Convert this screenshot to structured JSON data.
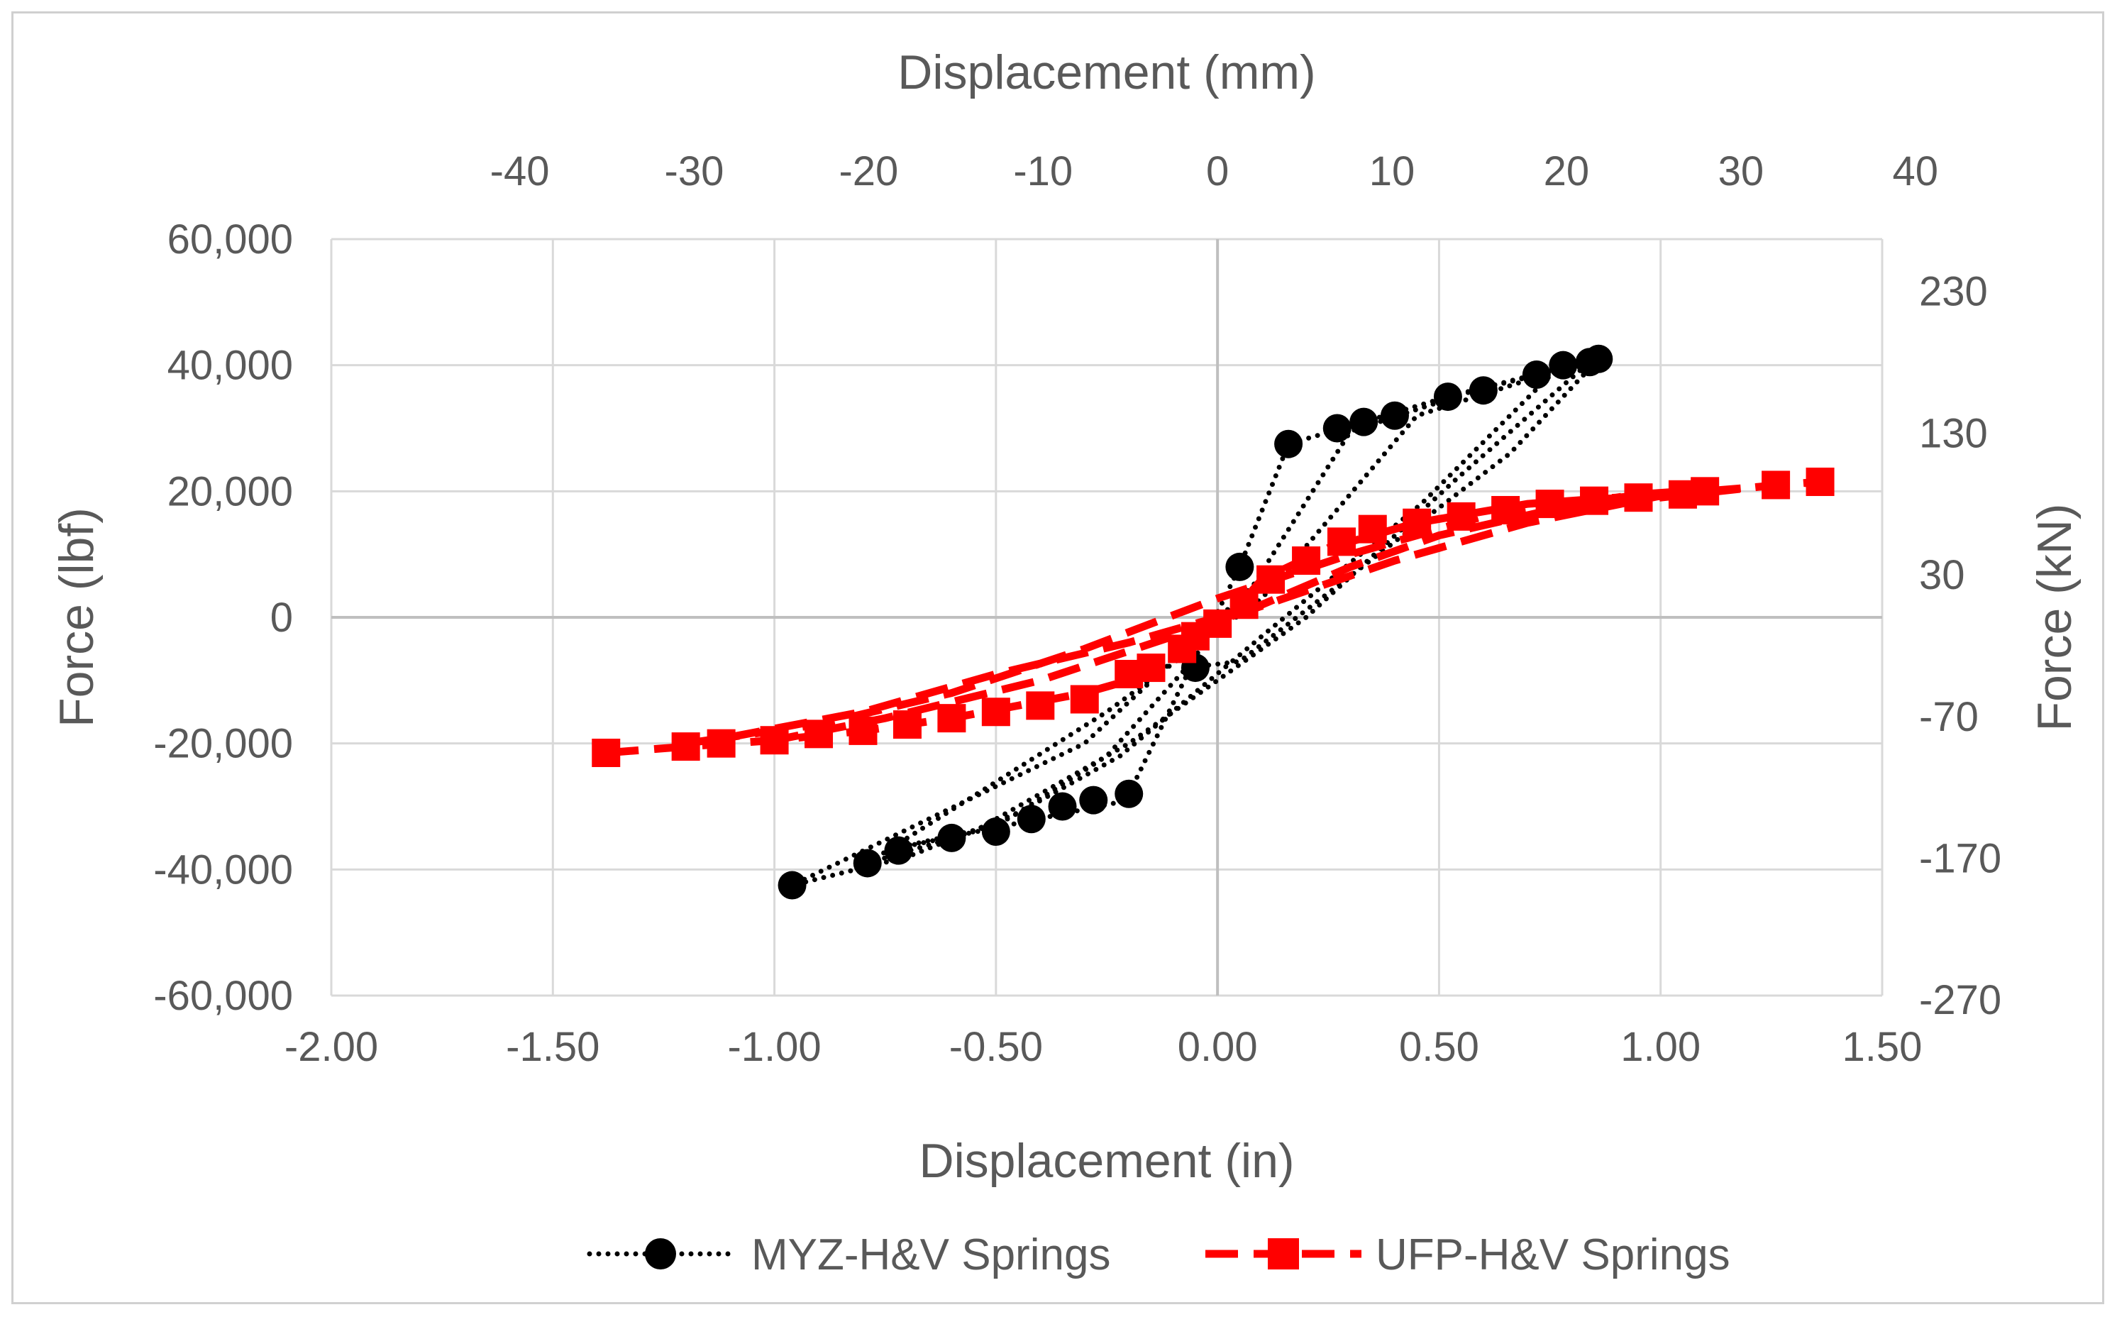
{
  "chart_data": {
    "type": "scatter",
    "x_bottom": {
      "label": "Displacement (in)",
      "range": [
        -2.0,
        1.5
      ],
      "ticks": [
        "-2.00",
        "-1.50",
        "-1.00",
        "-0.50",
        "0.00",
        "0.50",
        "1.00",
        "1.50"
      ]
    },
    "x_top": {
      "label": "Displacement (mm)",
      "range": [
        -40,
        40
      ],
      "ticks": [
        "-40",
        "-30",
        "-20",
        "-10",
        "0",
        "10",
        "20",
        "30",
        "40"
      ]
    },
    "y_left": {
      "label": "Force (lbf)",
      "range": [
        -60000,
        60000
      ],
      "ticks": [
        "60,000",
        "40,000",
        "20,000",
        "0",
        "-20,000",
        "-40,000",
        "-60,000"
      ]
    },
    "y_right": {
      "label": "Force (kN)",
      "range": [
        -270,
        230
      ],
      "ticks": [
        "230",
        "130",
        "30",
        "-70",
        "-170",
        "-270"
      ]
    },
    "grid": true,
    "legend_position": "bottom",
    "series": [
      {
        "name": "MYZ-H&V Springs",
        "color": "#000000",
        "marker": "circle",
        "line_style": "dotted",
        "x": [
          -0.2,
          0.05,
          0.16,
          0.33,
          0.52,
          0.8,
          0.86,
          0.66,
          0.4,
          0.05,
          -0.07,
          -0.25,
          -0.45,
          -0.7,
          -0.96,
          -0.3,
          0.08,
          0.3,
          0.58,
          0.84,
          0.54,
          0.2,
          -0.2,
          -0.55,
          -0.79,
          -0.25,
          0.1,
          0.45,
          0.76,
          0.46,
          0.1,
          -0.22,
          -0.5,
          -0.75,
          -0.2
        ],
        "y": [
          -28000,
          8000,
          27500,
          31000,
          35000,
          40000,
          41000,
          26000,
          12000,
          -7000,
          -8000,
          -22000,
          -31000,
          -38000,
          -42500,
          -20000,
          5000,
          29500,
          36000,
          40500,
          22000,
          0,
          -20000,
          -34000,
          -39000,
          -15000,
          3000,
          32000,
          39000,
          18000,
          -3000,
          -22000,
          -33000,
          -37000,
          -29000
        ],
        "marker_points_x": [
          -0.96,
          -0.79,
          -0.72,
          -0.6,
          -0.5,
          -0.42,
          -0.35,
          -0.28,
          -0.2,
          -0.05,
          0.05,
          0.16,
          0.27,
          0.33,
          0.4,
          0.52,
          0.6,
          0.72,
          0.78,
          0.84,
          0.86
        ],
        "marker_points_y": [
          -42500,
          -39000,
          -37000,
          -35000,
          -34000,
          -32000,
          -30000,
          -29000,
          -28000,
          -8000,
          8000,
          27500,
          30000,
          31000,
          32000,
          35000,
          36000,
          38500,
          40000,
          40500,
          41000
        ]
      },
      {
        "name": "UFP-H&V Springs",
        "color": "#ff0000",
        "marker": "square",
        "line_style": "dashed",
        "x": [
          -1.38,
          -1.2,
          -1.0,
          -0.8,
          -0.6,
          -0.45,
          -0.3,
          -0.15,
          0.0,
          0.1,
          0.25,
          0.45,
          0.7,
          0.9,
          1.1,
          1.36,
          1.26,
          1.0,
          0.75,
          0.5,
          0.3,
          0.1,
          -0.2,
          -0.5,
          -0.8,
          -1.1,
          -1.2,
          -0.9,
          -0.6,
          -0.3,
          0.0,
          0.3,
          0.6,
          0.95,
          1.05,
          0.7,
          0.4,
          0.15,
          -0.1,
          -0.4,
          -0.75,
          -1.0
        ],
        "y": [
          -21500,
          -20500,
          -19500,
          -18000,
          -16000,
          -14000,
          -12000,
          -9000,
          -2000,
          6000,
          11000,
          15000,
          18000,
          19000,
          20000,
          21500,
          21000,
          19000,
          17000,
          13000,
          8000,
          2000,
          -4000,
          -9000,
          -15000,
          -19000,
          -20000,
          -17000,
          -12000,
          -5000,
          3000,
          10000,
          16000,
          19500,
          20000,
          15000,
          9000,
          3000,
          -3000,
          -10000,
          -16000,
          -19500
        ],
        "marker_points_x": [
          -1.38,
          -1.2,
          -1.12,
          -1.0,
          -0.9,
          -0.8,
          -0.7,
          -0.6,
          -0.5,
          -0.4,
          -0.3,
          -0.2,
          -0.15,
          -0.08,
          -0.05,
          0.0,
          0.06,
          0.12,
          0.2,
          0.28,
          0.35,
          0.45,
          0.55,
          0.65,
          0.75,
          0.85,
          0.95,
          1.05,
          1.1,
          1.26,
          1.36
        ],
        "marker_points_y": [
          -21500,
          -20500,
          -20000,
          -19500,
          -18500,
          -18000,
          -17000,
          -16000,
          -15000,
          -14000,
          -13000,
          -9000,
          -8000,
          -5000,
          -3000,
          -1000,
          2000,
          6000,
          9000,
          12000,
          14000,
          15000,
          16000,
          17000,
          18000,
          18500,
          19000,
          19500,
          20000,
          21000,
          21500
        ]
      }
    ]
  }
}
